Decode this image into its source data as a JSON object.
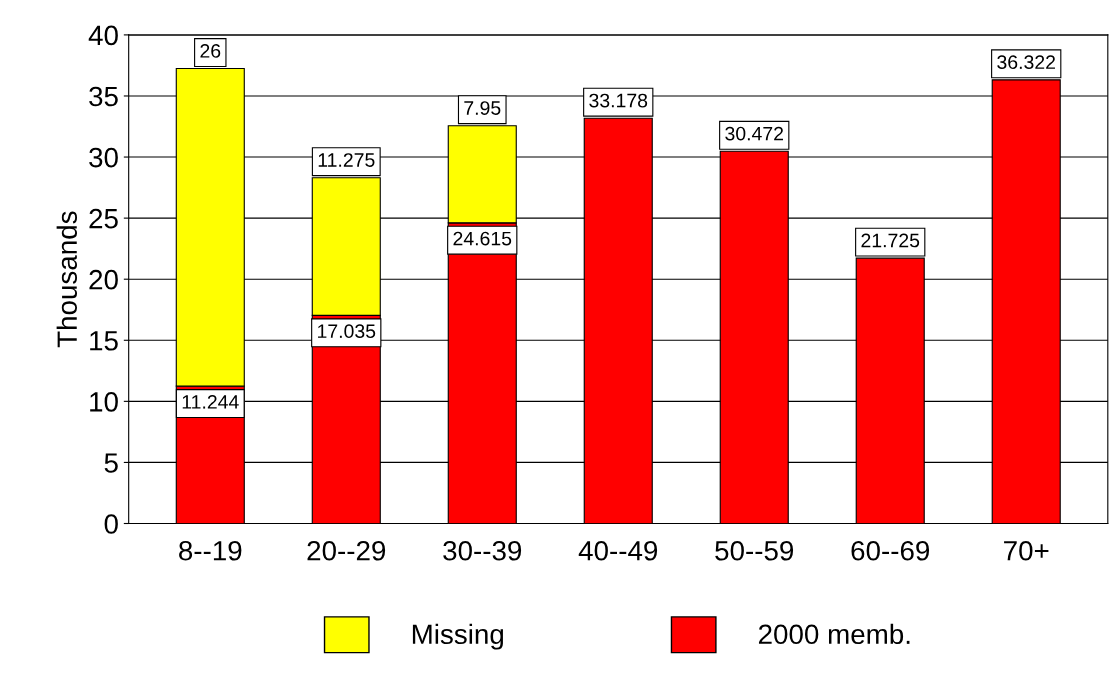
{
  "chart_data": {
    "type": "bar",
    "ylabel": "Thousands",
    "categories": [
      "8--19",
      "20--29",
      "30--39",
      "40--49",
      "50--59",
      "60--69",
      "70+"
    ],
    "series": [
      {
        "name": "2000 memb.",
        "color": "#ff0000",
        "values": [
          11.244,
          17.035,
          24.615,
          33.178,
          30.472,
          21.725,
          36.322
        ]
      },
      {
        "name": "Missing",
        "color": "#ffff00",
        "values": [
          26,
          11.275,
          7.95,
          null,
          null,
          null,
          null
        ]
      }
    ],
    "stacked": true,
    "ylim": [
      0,
      40
    ],
    "yticks": [
      0,
      5,
      10,
      15,
      20,
      25,
      30,
      35,
      40
    ],
    "grid": "y",
    "legend": "bottom",
    "data_labels": true
  }
}
